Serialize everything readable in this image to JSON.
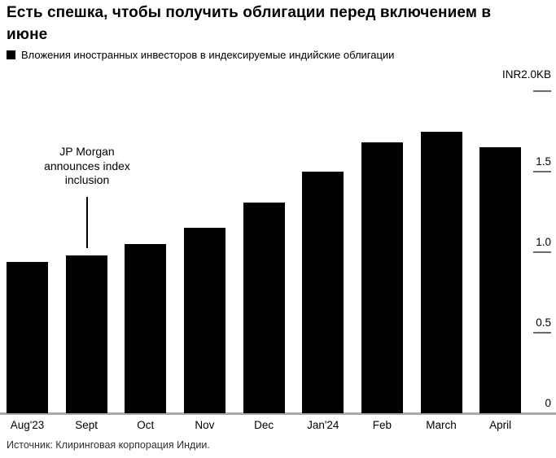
{
  "title": {
    "line1": "Есть спешка, чтобы получить облигации перед включением в",
    "line2": "июне"
  },
  "legend": {
    "label": "Вложения иностранных инвесторов в индексируемые индийские облигации",
    "swatch_color": "#000000"
  },
  "axis": {
    "unit_label": "INR2.0KB",
    "ticks": [
      {
        "value": 2.0,
        "label": ""
      },
      {
        "value": 1.5,
        "label": "1.5"
      },
      {
        "value": 1.0,
        "label": "1.0"
      },
      {
        "value": 0.5,
        "label": "0.5"
      },
      {
        "value": 0,
        "label": "0"
      }
    ]
  },
  "annotation": {
    "lines": [
      "JP Morgan",
      "announces index",
      "inclusion"
    ],
    "target_category": "Sept"
  },
  "source": "Источник: Клиринговая корпорация Индии.",
  "colors": {
    "bar": "#000000",
    "axis_line": "#a9a9a9",
    "tick_line": "#6b6b6b"
  },
  "chart_data": {
    "type": "bar",
    "categories": [
      "Aug'23",
      "Sept",
      "Oct",
      "Nov",
      "Dec",
      "Jan'24",
      "Feb",
      "March",
      "April"
    ],
    "values": [
      0.94,
      0.98,
      1.05,
      1.15,
      1.31,
      1.5,
      1.68,
      1.75,
      1.65
    ],
    "title": "Есть спешка, чтобы получить облигации перед включением в июне",
    "series_label": "Вложения иностранных инвесторов в индексируемые индийские облигации",
    "xlabel": "",
    "ylabel": "INR2.0KB",
    "ylim": [
      0,
      2.0
    ],
    "yticks": [
      0,
      0.5,
      1.0,
      1.5,
      2.0
    ],
    "legend_position": "top-left",
    "grid": false,
    "annotation": "JP Morgan announces index inclusion",
    "source": "Источник: Клиринговая корпорация Индии."
  }
}
